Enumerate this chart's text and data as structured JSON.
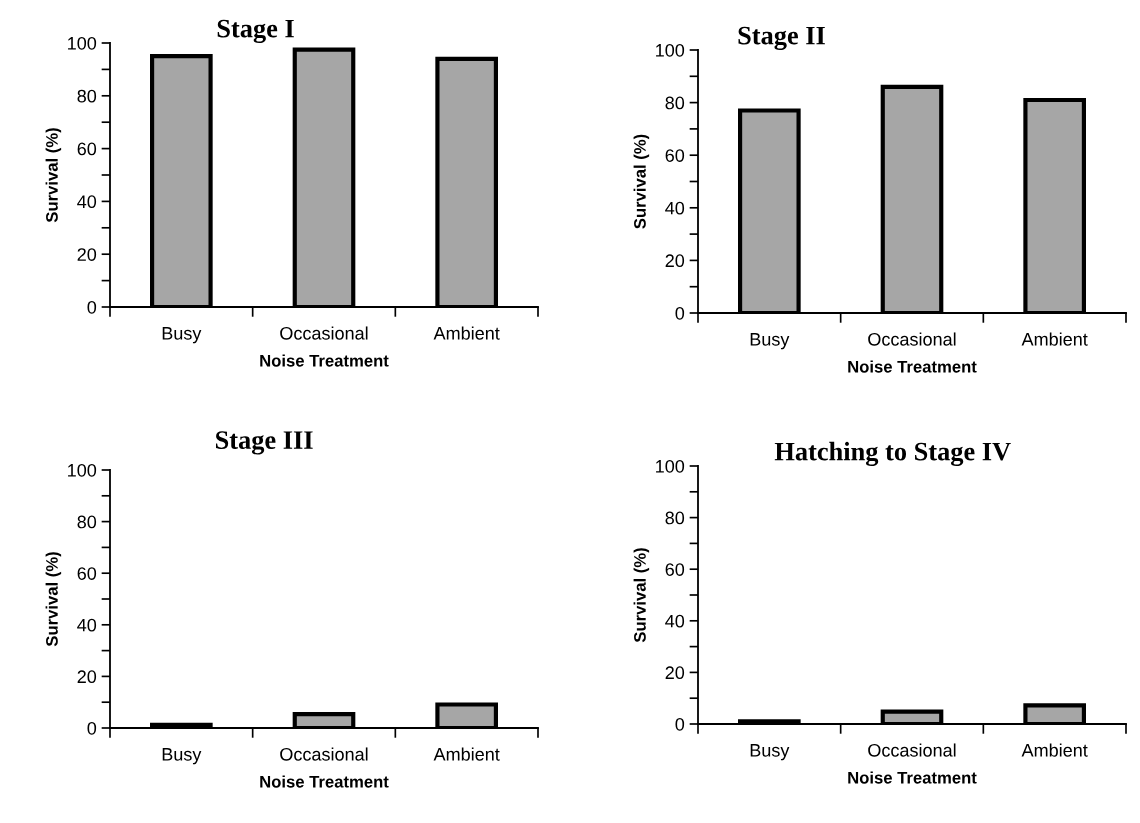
{
  "chart_data": [
    {
      "type": "bar",
      "title": "Stage I",
      "xlabel": "Noise Treatment",
      "ylabel": "Survival (%)",
      "categories": [
        "Busy",
        "Occasional",
        "Ambient"
      ],
      "values": [
        95,
        97.5,
        94
      ],
      "color": "#a6a6a6",
      "ylim": [
        0,
        100
      ],
      "yticks": [
        0,
        {
          "value": 10,
          "label": null
        },
        20,
        {
          "value": 30,
          "label": null
        },
        40,
        {
          "value": 50,
          "label": null
        },
        60,
        {
          "value": 70,
          "label": null
        },
        80,
        {
          "value": 90,
          "label": null
        },
        100
      ],
      "grid": false,
      "legend": false
    },
    {
      "type": "bar",
      "title": "Stage II",
      "xlabel": "Noise Treatment",
      "ylabel": "Survival (%)",
      "categories": [
        "Busy",
        "Occasional",
        "Ambient"
      ],
      "values": [
        77,
        86,
        81
      ],
      "color": "#a6a6a6",
      "ylim": [
        0,
        100
      ],
      "yticks": [
        0,
        {
          "value": 10,
          "label": null
        },
        20,
        {
          "value": 30,
          "label": null
        },
        40,
        {
          "value": 50,
          "label": null
        },
        60,
        {
          "value": 70,
          "label": null
        },
        80,
        {
          "value": 90,
          "label": null
        },
        100
      ],
      "grid": false,
      "legend": false
    },
    {
      "type": "bar",
      "title": "Stage III",
      "xlabel": "Noise Treatment",
      "ylabel": "Survival (%)",
      "categories": [
        "Busy",
        "Occasional",
        "Ambient"
      ],
      "values": [
        1.2,
        5.4,
        9.1
      ],
      "color": "#a6a6a6",
      "ylim": [
        0,
        100
      ],
      "yticks": [
        0,
        {
          "value": 10,
          "label": null
        },
        20,
        {
          "value": 30,
          "label": null
        },
        40,
        {
          "value": 50,
          "label": null
        },
        60,
        {
          "value": 70,
          "label": null
        },
        80,
        {
          "value": 90,
          "label": null
        },
        100
      ],
      "grid": false,
      "legend": false
    },
    {
      "type": "bar",
      "title": "Hatching to Stage IV",
      "xlabel": "Noise Treatment",
      "ylabel": "Survival (%)",
      "categories": [
        "Busy",
        "Occasional",
        "Ambient"
      ],
      "values": [
        1,
        4.8,
        7.2
      ],
      "color": "#a6a6a6",
      "ylim": [
        0,
        100
      ],
      "yticks": [
        0,
        {
          "value": 10,
          "label": null
        },
        20,
        {
          "value": 30,
          "label": null
        },
        40,
        {
          "value": 50,
          "label": null
        },
        60,
        {
          "value": 70,
          "label": null
        },
        80,
        {
          "value": 90,
          "label": null
        },
        100
      ],
      "grid": false,
      "legend": false
    }
  ]
}
